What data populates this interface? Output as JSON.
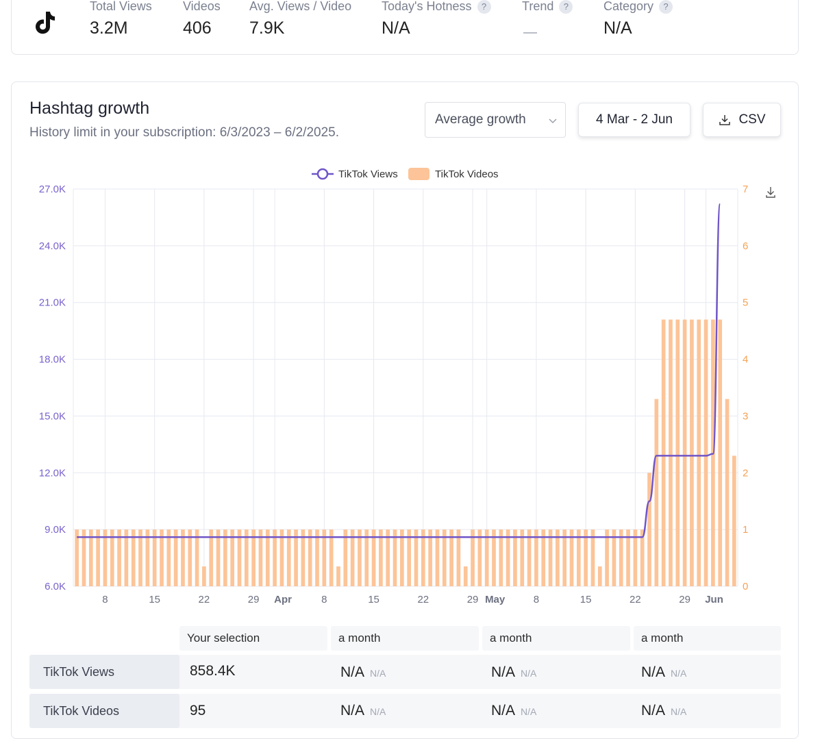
{
  "stats": [
    {
      "label": "Total Views",
      "value": "3.2M"
    },
    {
      "label": "Videos",
      "value": "406"
    },
    {
      "label": "Avg. Views / Video",
      "value": "7.9K"
    },
    {
      "label": "Today's Hotness",
      "value": "N/A",
      "help": "?"
    },
    {
      "label": "Trend",
      "value": "—",
      "help": "?"
    },
    {
      "label": "Category",
      "value": "N/A",
      "help": "?"
    }
  ],
  "growth": {
    "title": "Hashtag growth",
    "subtitle": "History limit in your subscription: 6/3/2023 – 6/2/2025.",
    "mode_select": "Average growth",
    "date_range": "4 Mar - 2 Jun",
    "csv_label": "CSV"
  },
  "chart_data": {
    "type": "bar+line",
    "legend": [
      "TikTok Views",
      "TikTok Videos"
    ],
    "colors": {
      "views": "#6f55c8",
      "videos": "#fcc498",
      "left_axis": "#7a62cc",
      "right_axis": "#f5a256"
    },
    "y_left": {
      "min": 6000,
      "max": 27000,
      "ticks": [
        "6.0K",
        "9.0K",
        "12.0K",
        "15.0K",
        "18.0K",
        "21.0K",
        "24.0K",
        "27.0K"
      ]
    },
    "y_right": {
      "min": 0,
      "max": 7,
      "ticks": [
        "0",
        "1",
        "2",
        "3",
        "4",
        "5",
        "6",
        "7"
      ]
    },
    "x_ticks": [
      "8",
      "15",
      "22",
      "29",
      "Apr",
      "8",
      "15",
      "22",
      "29",
      "May",
      "8",
      "15",
      "22",
      "29",
      "Jun"
    ],
    "x_tick_days": [
      4,
      11,
      18,
      25,
      28,
      35,
      42,
      49,
      56,
      58,
      65,
      72,
      79,
      86,
      89
    ],
    "x_bold_ticks": [
      4,
      9,
      14
    ],
    "videos": [
      1,
      1,
      1,
      1,
      1,
      1,
      1,
      1,
      1,
      1,
      1,
      1,
      1,
      1,
      1,
      1,
      1,
      1,
      0.35,
      1,
      1,
      1,
      1,
      1,
      1,
      1,
      1,
      1,
      1,
      1,
      1,
      1,
      1,
      1,
      1,
      1,
      1,
      0.35,
      1,
      1,
      1,
      1,
      1,
      1,
      1,
      1,
      1,
      1,
      1,
      1,
      1,
      1,
      1,
      1,
      1,
      0.35,
      1,
      1,
      1,
      1,
      1,
      1,
      1,
      1,
      1,
      1,
      1,
      1,
      1,
      1,
      1,
      1,
      1,
      1,
      0.35,
      1,
      1,
      1,
      1,
      1,
      1,
      2,
      3.3,
      4.7,
      4.7,
      4.7,
      4.7,
      4.7,
      4.7,
      4.7,
      4.7,
      4.7,
      3.3,
      2.3
    ],
    "views": [
      8600,
      8600,
      8600,
      8600,
      8600,
      8600,
      8600,
      8600,
      8600,
      8600,
      8600,
      8600,
      8600,
      8600,
      8600,
      8600,
      8600,
      8600,
      8600,
      8600,
      8600,
      8600,
      8600,
      8600,
      8600,
      8600,
      8600,
      8600,
      8600,
      8600,
      8600,
      8600,
      8600,
      8600,
      8600,
      8600,
      8600,
      8600,
      8600,
      8600,
      8600,
      8600,
      8600,
      8600,
      8600,
      8600,
      8600,
      8600,
      8600,
      8600,
      8600,
      8600,
      8600,
      8600,
      8600,
      8600,
      8600,
      8600,
      8600,
      8600,
      8600,
      8600,
      8600,
      8600,
      8600,
      8600,
      8600,
      8600,
      8600,
      8600,
      8600,
      8600,
      8600,
      8600,
      8600,
      8600,
      8600,
      8600,
      8600,
      8600,
      8600,
      10500,
      12900,
      12900,
      12900,
      12900,
      12900,
      12900,
      12900,
      12900,
      13000,
      26200
    ]
  },
  "table": {
    "headers": [
      "Your selection",
      "a month",
      "a month",
      "a month"
    ],
    "rows": [
      {
        "label": "TikTok Views",
        "selection": "858.4K",
        "cells": [
          {
            "value": "N/A",
            "sub": "N/A"
          },
          {
            "value": "N/A",
            "sub": "N/A"
          },
          {
            "value": "N/A",
            "sub": "N/A"
          }
        ]
      },
      {
        "label": "TikTok Videos",
        "selection": "95",
        "cells": [
          {
            "value": "N/A",
            "sub": "N/A"
          },
          {
            "value": "N/A",
            "sub": "N/A"
          },
          {
            "value": "N/A",
            "sub": "N/A"
          }
        ]
      }
    ]
  }
}
